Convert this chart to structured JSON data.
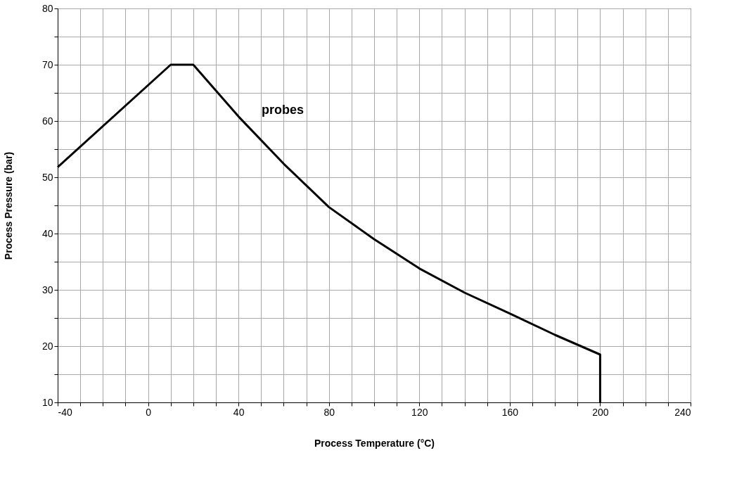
{
  "chart_data": {
    "type": "line",
    "xlabel": "Process Temperature (°C)",
    "ylabel": "Process Pressure (bar)",
    "x": [
      -40,
      10,
      20,
      40,
      60,
      80,
      100,
      120,
      140,
      160,
      180,
      200,
      200
    ],
    "series": [
      {
        "color": "#000000",
        "values": [
          51.8,
          70,
          70,
          60.8,
          52.4,
          44.7,
          39,
          33.8,
          29.5,
          25.8,
          22,
          18.5,
          10
        ]
      }
    ],
    "xlim": [
      -40,
      240
    ],
    "xticks": [
      -40,
      {
        "value": -30,
        "label": null
      },
      {
        "value": -20,
        "label": null
      },
      {
        "value": -10,
        "label": null
      },
      0,
      {
        "value": 10,
        "label": null
      },
      {
        "value": 20,
        "label": null
      },
      {
        "value": 30,
        "label": null
      },
      40,
      {
        "value": 50,
        "label": null
      },
      {
        "value": 60,
        "label": null
      },
      {
        "value": 70,
        "label": null
      },
      80,
      {
        "value": 90,
        "label": null
      },
      {
        "value": 100,
        "label": null
      },
      {
        "value": 110,
        "label": null
      },
      120,
      {
        "value": 130,
        "label": null
      },
      {
        "value": 140,
        "label": null
      },
      {
        "value": 150,
        "label": null
      },
      160,
      {
        "value": 170,
        "label": null
      },
      {
        "value": 180,
        "label": null
      },
      {
        "value": 190,
        "label": null
      },
      200,
      {
        "value": 210,
        "label": null
      },
      {
        "value": 220,
        "label": null
      },
      {
        "value": 230,
        "label": null
      },
      240
    ],
    "ylim": [
      10,
      80
    ],
    "yticks": [
      10,
      {
        "value": 15,
        "label": null
      },
      20,
      {
        "value": 25,
        "label": null
      },
      30,
      {
        "value": 35,
        "label": null
      },
      40,
      {
        "value": 45,
        "label": null
      },
      50,
      {
        "value": 55,
        "label": null
      },
      60,
      {
        "value": 65,
        "label": null
      },
      70,
      {
        "value": 75,
        "label": null
      },
      80
    ],
    "grid": true,
    "annotations": [
      "probes"
    ]
  }
}
